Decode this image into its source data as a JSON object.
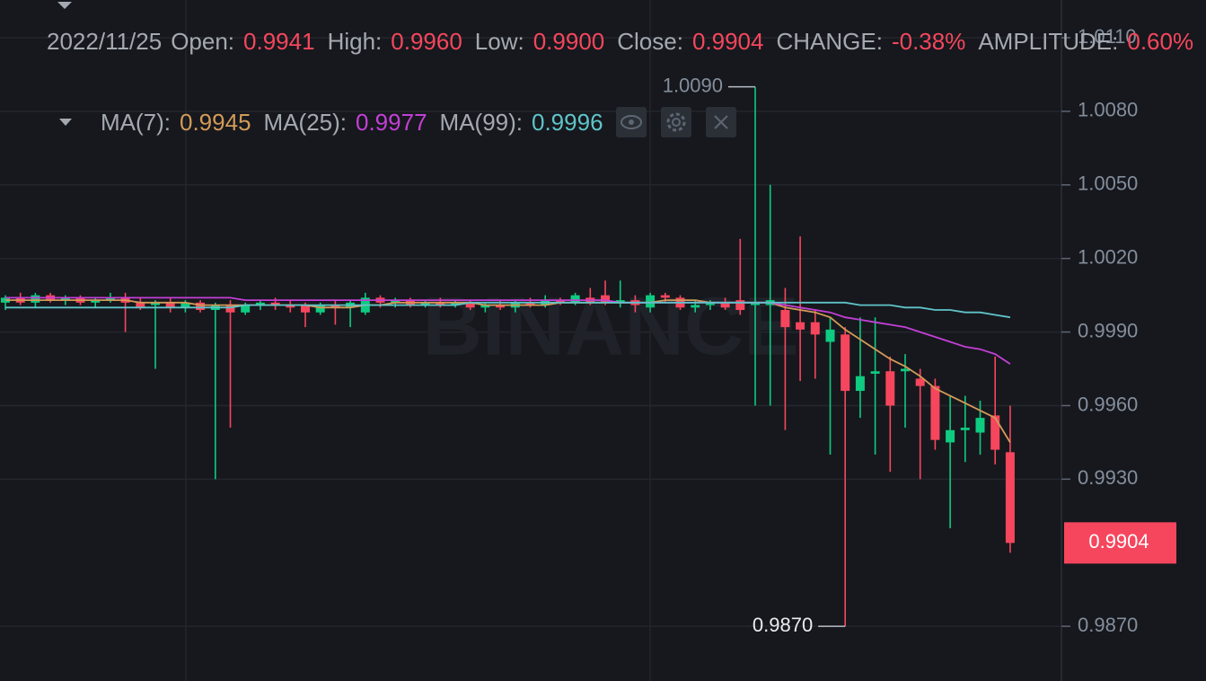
{
  "chart_data": {
    "type": "candlestick",
    "watermark": "BINANCE",
    "header": {
      "date": "2022/11/25",
      "items": [
        {
          "label": "Open:",
          "value": "0.9941"
        },
        {
          "label": "High:",
          "value": "0.9960"
        },
        {
          "label": "Low:",
          "value": "0.9900"
        },
        {
          "label": "Close:",
          "value": "0.9904"
        },
        {
          "label": "CHANGE:",
          "value": "-0.38%"
        },
        {
          "label": "AMPLITUDE:",
          "value": "0.60%"
        }
      ]
    },
    "ylim": [
      0.98477,
      1.01254
    ],
    "yticks": [
      {
        "value": 1.011,
        "label": "1.0110"
      },
      {
        "value": 1.008,
        "label": "1.0080"
      },
      {
        "value": 1.005,
        "label": "1.0050"
      },
      {
        "value": 1.002,
        "label": "1.0020"
      },
      {
        "value": 0.999,
        "label": "0.9990"
      },
      {
        "value": 0.996,
        "label": "0.9960"
      },
      {
        "value": 0.993,
        "label": "0.9930"
      },
      {
        "value": 0.987,
        "label": "0.9870"
      }
    ],
    "grid": true,
    "up_color": "#0ecb81",
    "down_color": "#f6465d",
    "open": [
      1.0002,
      1.0004,
      1.0002,
      1.0005,
      1.0003,
      1.0004,
      1.0002,
      1.0003,
      1.0004,
      1.0002,
      1.0001,
      1.0002,
      1.0,
      1.0002,
      0.9999,
      1.0001,
      0.9998,
      1.0001,
      1.0002,
      1.0001,
      1.0001,
      0.9998,
      1.0001,
      1.0,
      0.9998,
      1.0004,
      1.0002,
      1.0003,
      1.0001,
      1.0002,
      1.0001,
      1.0002,
      1.0,
      1.0001,
      1.0,
      1.0002,
      1.0001,
      1.0003,
      1.0002,
      1.0004,
      1.0005,
      1.0002,
      1.0003,
      1.0,
      1.0005,
      1.0004,
      1.0,
      1.0001,
      1.0002,
      1.0003,
      1.0001,
      1.0001,
      0.9999,
      0.9994,
      0.9994,
      0.9986,
      0.9989,
      0.9966,
      0.9973,
      0.9974,
      0.9974,
      0.9971,
      0.9968,
      0.9945,
      0.995,
      0.9949,
      0.9956,
      0.9941
    ],
    "high": [
      1.0005,
      1.0006,
      1.0006,
      1.0006,
      1.0005,
      1.0005,
      1.0004,
      1.0006,
      1.0006,
      1.0004,
      1.0003,
      1.0004,
      1.0003,
      1.0003,
      1.0002,
      1.0003,
      1.0002,
      1.0003,
      1.0004,
      1.0003,
      1.0002,
      1.0002,
      1.0003,
      1.0003,
      1.0006,
      1.0005,
      1.0004,
      1.0004,
      1.0003,
      1.0004,
      1.0003,
      1.0003,
      1.0002,
      1.0003,
      1.0003,
      1.0004,
      1.0005,
      1.0004,
      1.0006,
      1.0008,
      1.0011,
      1.0011,
      1.0005,
      1.0006,
      1.0006,
      1.0005,
      1.0003,
      1.0003,
      1.0004,
      1.0028,
      1.009,
      1.005,
      1.0008,
      1.0029,
      0.9999,
      0.9996,
      0.9992,
      0.9996,
      0.9996,
      0.998,
      0.9981,
      0.9975,
      0.9971,
      0.9964,
      0.9964,
      0.9962,
      0.998,
      0.996
    ],
    "low": [
      0.9999,
      1.0001,
      1.0,
      1.0002,
      1.0001,
      1.0001,
      1.0,
      1.0002,
      0.999,
      0.9999,
      0.9975,
      0.9998,
      0.9998,
      0.9998,
      0.993,
      0.9951,
      0.9997,
      0.9999,
      0.9999,
      0.9998,
      0.9992,
      0.9997,
      0.9993,
      0.9992,
      0.9997,
      1.0,
      1.0,
      1.0,
      1.0,
      1.0,
      1.0,
      0.9999,
      0.9998,
      0.9999,
      0.9998,
      1.0,
      1.0,
      1.0001,
      1.0001,
      1.0001,
      1.0001,
      1.0,
      0.9998,
      0.9998,
      1.0002,
      0.9999,
      0.9998,
      0.9999,
      0.9999,
      0.9997,
      0.996,
      0.996,
      0.995,
      0.997,
      0.9971,
      0.994,
      0.987,
      0.9955,
      0.994,
      0.9933,
      0.9951,
      0.993,
      0.9942,
      0.991,
      0.9937,
      0.994,
      0.9936,
      0.99
    ],
    "close": [
      1.0004,
      1.0002,
      1.0005,
      1.0003,
      1.0004,
      1.0002,
      1.0003,
      1.0004,
      1.0002,
      1.0,
      1.0002,
      1.0,
      1.0002,
      0.9999,
      1.0001,
      0.9998,
      1.0001,
      1.0002,
      1.0001,
      1.0,
      0.9998,
      1.0001,
      1.0,
      1.0002,
      1.0004,
      1.0002,
      1.0003,
      1.0001,
      1.0002,
      1.0001,
      1.0002,
      1.0,
      1.0001,
      1.0,
      1.0002,
      1.0001,
      1.0003,
      1.0002,
      1.0005,
      1.0002,
      1.0002,
      1.0003,
      1.0001,
      1.0005,
      1.0004,
      1.0,
      1.0001,
      1.0002,
      1.0,
      0.9999,
      1.0002,
      1.0003,
      0.9992,
      0.9991,
      0.9989,
      0.9991,
      0.9966,
      0.9972,
      0.9974,
      0.996,
      0.9975,
      0.9968,
      0.9946,
      0.995,
      0.9951,
      0.9955,
      0.9942,
      0.9904
    ],
    "series": [
      {
        "name": "MA(7):",
        "value_label": "0.9945",
        "color": "#d39a58",
        "values": [
          1.0003,
          1.0003,
          1.0003,
          1.0003,
          1.0003,
          1.0003,
          1.0003,
          1.0003,
          1.0003,
          1.0002,
          1.0002,
          1.0002,
          1.0002,
          1.0001,
          1.0001,
          1.0001,
          1.0001,
          1.0001,
          1.0001,
          1.0001,
          1.0001,
          1.0,
          1.0,
          1.0,
          1.0001,
          1.0001,
          1.0002,
          1.0002,
          1.0002,
          1.0002,
          1.0002,
          1.0002,
          1.0001,
          1.0001,
          1.0001,
          1.0001,
          1.0001,
          1.0002,
          1.0002,
          1.0002,
          1.0002,
          1.0002,
          1.0002,
          1.0002,
          1.0003,
          1.0003,
          1.0003,
          1.0002,
          1.0002,
          1.0002,
          1.0002,
          1.0002,
          1.0,
          0.9999,
          0.9998,
          0.9996,
          0.9991,
          0.9987,
          0.9983,
          0.9979,
          0.9976,
          0.9972,
          0.9967,
          0.9964,
          0.9961,
          0.9958,
          0.9955,
          0.9945
        ]
      },
      {
        "name": "MA(25):",
        "value_label": "0.9977",
        "color": "#c43fd6",
        "values": [
          1.0004,
          1.0004,
          1.0004,
          1.0004,
          1.0004,
          1.0004,
          1.0004,
          1.0004,
          1.0004,
          1.0004,
          1.0004,
          1.0004,
          1.0004,
          1.0004,
          1.0004,
          1.0004,
          1.0003,
          1.0003,
          1.0003,
          1.0003,
          1.0003,
          1.0003,
          1.0003,
          1.0003,
          1.0003,
          1.0003,
          1.0003,
          1.0003,
          1.0003,
          1.0003,
          1.0003,
          1.0003,
          1.0003,
          1.0003,
          1.0003,
          1.0003,
          1.0003,
          1.0003,
          1.0003,
          1.0003,
          1.0003,
          1.0002,
          1.0002,
          1.0002,
          1.0002,
          1.0002,
          1.0002,
          1.0002,
          1.0002,
          1.0002,
          1.0002,
          1.0002,
          1.0001,
          1.0,
          0.9999,
          0.9998,
          0.9996,
          0.9995,
          0.9994,
          0.9993,
          0.9992,
          0.999,
          0.9988,
          0.9986,
          0.9984,
          0.9983,
          0.9981,
          0.9977
        ]
      },
      {
        "name": "MA(99):",
        "value_label": "0.9996",
        "color": "#5fc4c9",
        "values": [
          1.0,
          1.0,
          1.0,
          1.0,
          1.0,
          1.0,
          1.0,
          1.0,
          1.0,
          1.0,
          1.0,
          1.0,
          1.0,
          1.0,
          1.0,
          1.0,
          1.0001,
          1.0001,
          1.0001,
          1.0001,
          1.0001,
          1.0001,
          1.0001,
          1.0001,
          1.0001,
          1.0001,
          1.0001,
          1.0001,
          1.0001,
          1.0001,
          1.0001,
          1.0002,
          1.0002,
          1.0002,
          1.0002,
          1.0002,
          1.0002,
          1.0002,
          1.0002,
          1.0002,
          1.0002,
          1.0002,
          1.0002,
          1.0002,
          1.0002,
          1.0002,
          1.0002,
          1.0002,
          1.0002,
          1.0002,
          1.0002,
          1.0002,
          1.0002,
          1.0002,
          1.0002,
          1.0002,
          1.0002,
          1.0001,
          1.0001,
          1.0001,
          1.0,
          1.0,
          0.9999,
          0.9999,
          0.9998,
          0.9998,
          0.9997,
          0.9996
        ]
      }
    ],
    "annotations": [
      {
        "value": 1.009,
        "label": "1.0090"
      },
      {
        "value": 0.987,
        "label": "0.9870"
      }
    ]
  }
}
